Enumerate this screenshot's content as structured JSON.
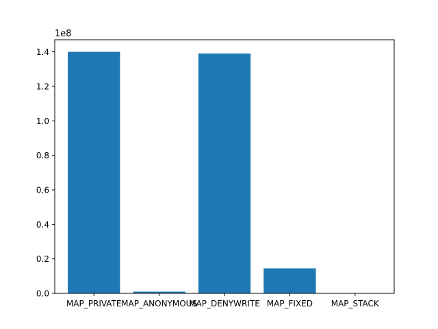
{
  "chart_data": {
    "type": "bar",
    "categories": [
      "MAP_PRIVATE",
      "MAP_ANONYMOUS",
      "MAP_DENYWRITE",
      "MAP_FIXED",
      "MAP_STACK"
    ],
    "values": [
      140000000,
      1000000,
      139000000,
      14500000,
      0
    ],
    "ylim": [
      0,
      147000000
    ],
    "yticks": [
      0,
      20000000,
      40000000,
      60000000,
      80000000,
      100000000,
      120000000,
      140000000
    ],
    "ytick_labels": [
      "0.0",
      "0.2",
      "0.4",
      "0.6",
      "0.8",
      "1.0",
      "1.2",
      "1.4"
    ],
    "offset_label": "1e8",
    "bar_color": "#1f77b4",
    "grid": false,
    "title": "",
    "xlabel": "",
    "ylabel": ""
  }
}
